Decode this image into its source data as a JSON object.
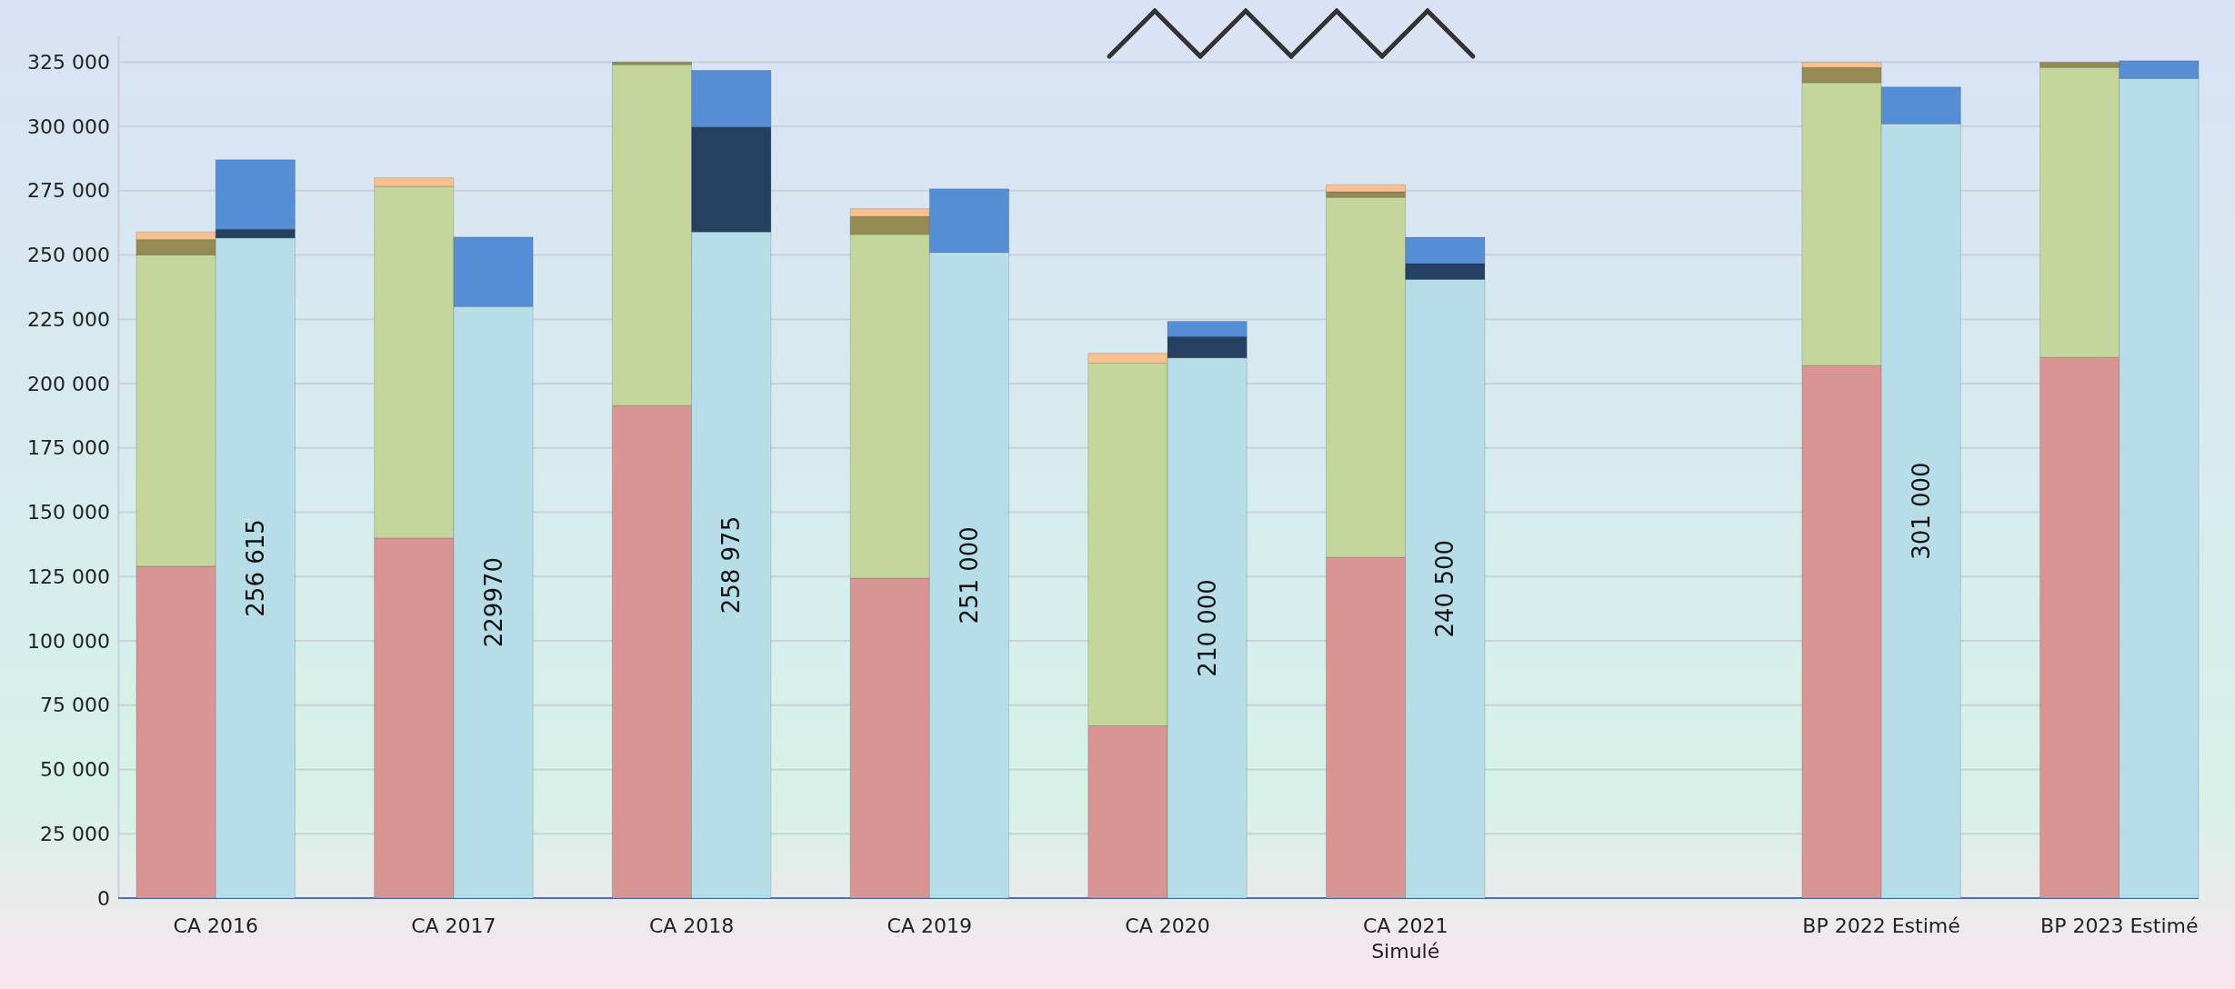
{
  "chart_data": {
    "type": "bar",
    "stacked": true,
    "grid": "y",
    "categories": [
      "CA 2016",
      null,
      null,
      "CA 2017",
      null,
      null,
      "CA 2018",
      null,
      null,
      "CA 2019",
      null,
      null,
      "CA 2020",
      null,
      null,
      "CA 2021\nSimulé",
      null,
      null,
      null,
      null,
      null,
      "BP 2022 Estimé",
      null,
      null,
      "BP 2023 Estimé",
      null
    ],
    "series": [
      {
        "color": "#d99594",
        "values": [
          129000,
          null,
          null,
          140000,
          null,
          null,
          191500,
          null,
          null,
          124400,
          null,
          null,
          67000,
          null,
          null,
          132500,
          null,
          null,
          null,
          null,
          null,
          207000,
          null,
          null,
          210200,
          null
        ]
      },
      {
        "color": "#c3d69b",
        "values": [
          121000,
          null,
          null,
          136700,
          null,
          null,
          132500,
          null,
          null,
          133600,
          null,
          null,
          141000,
          null,
          null,
          139900,
          null,
          null,
          null,
          null,
          null,
          110000,
          null,
          null,
          112700,
          null
        ]
      },
      {
        "color": "#948a54",
        "values": [
          6000,
          null,
          null,
          null,
          null,
          null,
          1000,
          null,
          null,
          7000,
          null,
          null,
          null,
          null,
          null,
          2200,
          null,
          null,
          null,
          null,
          null,
          5900,
          null,
          null,
          2000,
          null
        ]
      },
      {
        "color": "#fac090",
        "values": [
          3000,
          null,
          null,
          3300,
          null,
          null,
          null,
          null,
          null,
          3000,
          null,
          null,
          3800,
          null,
          null,
          2700,
          null,
          null,
          null,
          null,
          null,
          2000,
          null,
          null,
          null,
          null
        ]
      },
      {
        "color": "#b7dee8",
        "values": [
          null,
          256615,
          null,
          null,
          229970,
          null,
          null,
          258975,
          null,
          null,
          251000,
          null,
          null,
          210000,
          null,
          null,
          240500,
          null,
          null,
          null,
          null,
          null,
          301000,
          null,
          null,
          318600
        ],
        "value_labels": [
          null,
          "256 615",
          null,
          null,
          "229970",
          null,
          null,
          "258 975",
          null,
          null,
          "251 000",
          null,
          null,
          "210 000",
          null,
          null,
          "240 500",
          null,
          null,
          null,
          null,
          null,
          "301 000",
          null,
          null,
          null
        ]
      },
      {
        "color": "#254061",
        "values": [
          null,
          3400,
          null,
          null,
          null,
          null,
          null,
          40800,
          null,
          null,
          null,
          null,
          null,
          8300,
          null,
          null,
          6200,
          null,
          null,
          null,
          null,
          null,
          null,
          null,
          null,
          null
        ]
      },
      {
        "color": "#558ed5",
        "values": [
          null,
          27000,
          null,
          null,
          27000,
          null,
          null,
          22000,
          null,
          null,
          24700,
          null,
          null,
          5900,
          null,
          null,
          10200,
          null,
          null,
          null,
          null,
          null,
          14300,
          null,
          null,
          6900
        ]
      }
    ],
    "ylim": [
      0,
      335000
    ],
    "yticks": [
      {
        "value": 0,
        "label": "0"
      },
      {
        "value": 25000,
        "label": "25 000"
      },
      {
        "value": 50000,
        "label": "50 000"
      },
      {
        "value": 75000,
        "label": "75 000"
      },
      {
        "value": 100000,
        "label": "100 000"
      },
      {
        "value": 125000,
        "label": "125 000"
      },
      {
        "value": 150000,
        "label": "150 000"
      },
      {
        "value": 175000,
        "label": "175 000"
      },
      {
        "value": 200000,
        "label": "200 000"
      },
      {
        "value": 225000,
        "label": "225 000"
      },
      {
        "value": 250000,
        "label": "250 000"
      },
      {
        "value": 275000,
        "label": "275 000"
      },
      {
        "value": 300000,
        "label": "300 000"
      },
      {
        "value": 325000,
        "label": "325 000"
      }
    ]
  }
}
